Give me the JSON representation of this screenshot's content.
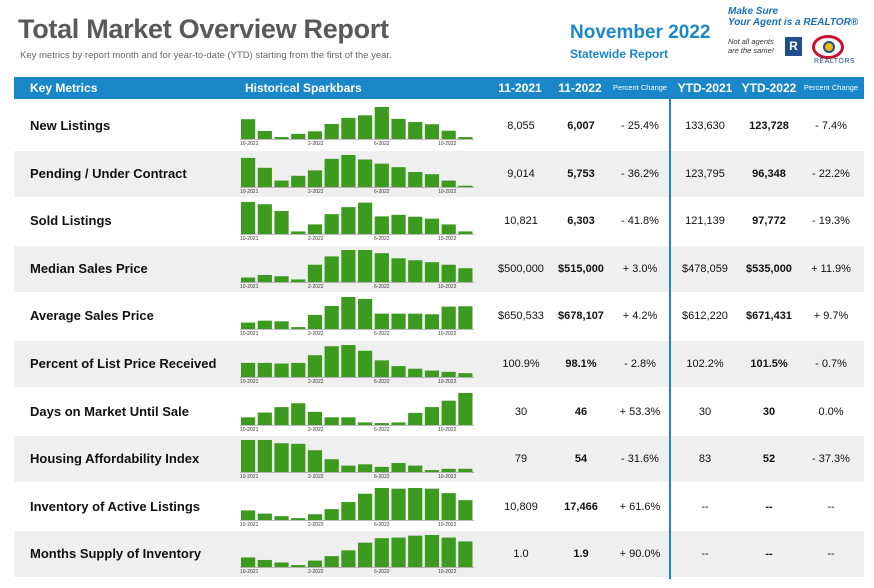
{
  "header": {
    "title": "Total Market Overview Report",
    "subtitle": "Key metrics by report month and for year-to-date (YTD) starting from the first of the year.",
    "month": "November 2022",
    "region": "Statewide Report"
  },
  "logo": {
    "tagline_1": "Make Sure",
    "tagline_2": "Your Agent is a REALTOR®",
    "note_1": "Not all agents",
    "note_2": "are the same!",
    "r_mark": "R",
    "assoc": "REALTORS"
  },
  "table": {
    "columns": {
      "metric": "Key Metrics",
      "spark": "Historical Sparkbars",
      "prev": "11-2021",
      "curr": "11-2022",
      "pct": "Percent Change",
      "ytd_prev": "YTD-2021",
      "ytd_curr": "YTD-2022",
      "ytd_pct": "Percent Change"
    },
    "tick_labels": [
      "10-2021",
      "2-2022",
      "6-2022",
      "10-2022"
    ],
    "bar_color": "#3c9a1e",
    "rows": [
      {
        "metric": "New Listings",
        "prev": "8,055",
        "curr": "6,007",
        "pct": "- 25.4%",
        "ytd_prev": "133,630",
        "ytd_curr": "123,728",
        "ytd_pct": "- 7.4%",
        "bars": [
          0.62,
          0.25,
          0.06,
          0.16,
          0.24,
          0.47,
          0.66,
          0.74,
          1.0,
          0.63,
          0.53,
          0.46,
          0.26,
          0.06
        ]
      },
      {
        "metric": "Pending / Under Contract",
        "prev": "9,014",
        "curr": "5,753",
        "pct": "- 36.2%",
        "ytd_prev": "123,795",
        "ytd_curr": "96,348",
        "ytd_pct": "- 22.2%",
        "bars": [
          0.91,
          0.6,
          0.2,
          0.35,
          0.52,
          0.88,
          1.0,
          0.86,
          0.73,
          0.62,
          0.47,
          0.4,
          0.2,
          0.04
        ]
      },
      {
        "metric": "Sold Listings",
        "prev": "10,821",
        "curr": "6,303",
        "pct": "- 41.8%",
        "ytd_prev": "121,139",
        "ytd_curr": "97,772",
        "ytd_pct": "- 19.3%",
        "bars": [
          1.0,
          0.93,
          0.72,
          0.08,
          0.3,
          0.62,
          0.84,
          0.98,
          0.55,
          0.6,
          0.54,
          0.48,
          0.3,
          0.08
        ]
      },
      {
        "metric": "Median Sales Price",
        "prev": "$500,000",
        "curr": "$515,000",
        "pct": "+ 3.0%",
        "ytd_prev": "$478,059",
        "ytd_curr": "$535,000",
        "ytd_pct": "+ 11.9%",
        "bars": [
          0.14,
          0.22,
          0.18,
          0.08,
          0.54,
          0.8,
          1.0,
          1.0,
          0.9,
          0.74,
          0.68,
          0.62,
          0.54,
          0.43
        ]
      },
      {
        "metric": "Average Sales Price",
        "prev": "$650,533",
        "curr": "$678,107",
        "pct": "+ 4.2%",
        "ytd_prev": "$612,220",
        "ytd_curr": "$671,431",
        "ytd_pct": "+ 9.7%",
        "bars": [
          0.2,
          0.26,
          0.24,
          0.06,
          0.44,
          0.72,
          1.0,
          0.94,
          0.48,
          0.48,
          0.48,
          0.46,
          0.7,
          0.71
        ]
      },
      {
        "metric": "Percent of List Price Received",
        "prev": "100.9%",
        "curr": "98.1%",
        "pct": "- 2.8%",
        "ytd_prev": "102.2%",
        "ytd_curr": "101.5%",
        "ytd_pct": "- 0.7%",
        "bars": [
          0.44,
          0.44,
          0.42,
          0.44,
          0.68,
          0.96,
          1.0,
          0.82,
          0.52,
          0.34,
          0.26,
          0.2,
          0.16,
          0.12
        ]
      },
      {
        "metric": "Days on Market Until Sale",
        "prev": "30",
        "curr": "46",
        "pct": "+ 53.3%",
        "ytd_prev": "30",
        "ytd_curr": "30",
        "ytd_pct": "0.0%",
        "bars": [
          0.24,
          0.39,
          0.56,
          0.68,
          0.41,
          0.24,
          0.24,
          0.08,
          0.06,
          0.08,
          0.38,
          0.56,
          0.76,
          1.0
        ]
      },
      {
        "metric": "Housing Affordability Index",
        "prev": "79",
        "curr": "54",
        "pct": "- 31.6%",
        "ytd_prev": "83",
        "ytd_curr": "52",
        "ytd_pct": "- 37.3%",
        "bars": [
          1.0,
          1.0,
          0.9,
          0.88,
          0.68,
          0.4,
          0.2,
          0.24,
          0.16,
          0.28,
          0.2,
          0.06,
          0.1,
          0.1
        ]
      },
      {
        "metric": "Inventory of Active Listings",
        "prev": "10,809",
        "curr": "17,466",
        "pct": "+ 61.6%",
        "ytd_prev": "--",
        "ytd_curr": "--",
        "ytd_pct": "--",
        "bars": [
          0.3,
          0.2,
          0.12,
          0.06,
          0.18,
          0.34,
          0.56,
          0.82,
          1.0,
          0.98,
          1.0,
          0.98,
          0.84,
          0.62
        ]
      },
      {
        "metric": "Months Supply of Inventory",
        "prev": "1.0",
        "curr": "1.9",
        "pct": "+ 90.0%",
        "ytd_prev": "--",
        "ytd_curr": "--",
        "ytd_pct": "--",
        "bars": [
          0.3,
          0.22,
          0.14,
          0.06,
          0.2,
          0.34,
          0.52,
          0.76,
          0.9,
          0.92,
          0.98,
          1.0,
          0.92,
          0.8
        ]
      }
    ]
  }
}
